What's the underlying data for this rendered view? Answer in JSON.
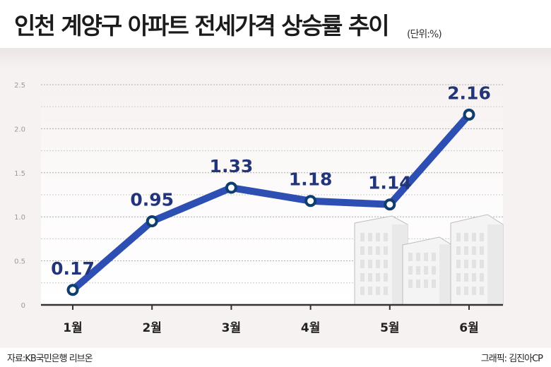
{
  "title": "인천 계양구 아파트 전세가격 상승률 추이",
  "unit": "(단위:%)",
  "source": "자료:KB국민은행 리브온",
  "credit": "그래픽: 김진아CP",
  "colors": {
    "line": "#2d4fb3",
    "marker_stroke": "#0f3d6e",
    "label": "#23357a"
  },
  "chart_data": {
    "type": "line",
    "categories": [
      "1월",
      "2월",
      "3월",
      "4월",
      "5월",
      "6월"
    ],
    "series": [
      {
        "values": [
          0.17,
          0.95,
          1.33,
          1.18,
          1.14,
          2.16
        ]
      }
    ],
    "data_labels": [
      "0.17",
      "0.95",
      "1.33",
      "1.18",
      "1.14",
      "2.16"
    ],
    "y_ticks": [
      "0",
      "0.5",
      "1.0",
      "1.5",
      "2.0",
      "2.5"
    ],
    "ylim": [
      0,
      2.5
    ],
    "grid": true,
    "legend": "none"
  }
}
